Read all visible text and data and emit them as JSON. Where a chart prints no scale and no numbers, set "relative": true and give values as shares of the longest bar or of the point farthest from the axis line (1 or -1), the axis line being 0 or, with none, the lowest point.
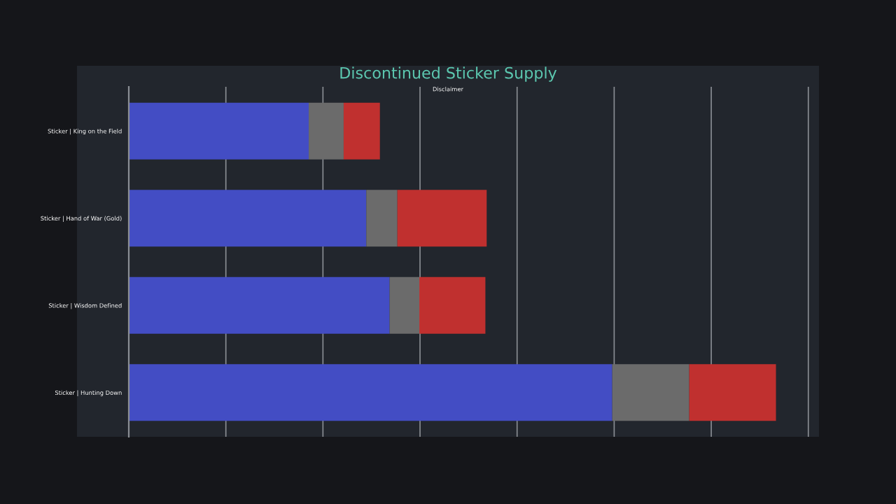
{
  "chart_data": {
    "type": "bar",
    "title": "Discontinued Sticker Supply",
    "orientation": "horizontal",
    "stacked": true,
    "relative": true,
    "grid": "x",
    "categories": [
      "Sticker | King on the Field",
      "Sticker | Hand of War (Gold)",
      "Sticker | Wisdom Defined",
      "Sticker | Hunting Down"
    ],
    "series": [
      {
        "color": "#434dc4",
        "values": [
          0.278,
          0.367,
          0.403,
          0.747
        ]
      },
      {
        "color": "#6b6b6b",
        "values": [
          0.054,
          0.048,
          0.046,
          0.119
        ]
      },
      {
        "color": "#c0302f",
        "values": [
          0.056,
          0.138,
          0.102,
          0.134
        ]
      }
    ],
    "annotations": [
      "Disclaimer"
    ]
  }
}
